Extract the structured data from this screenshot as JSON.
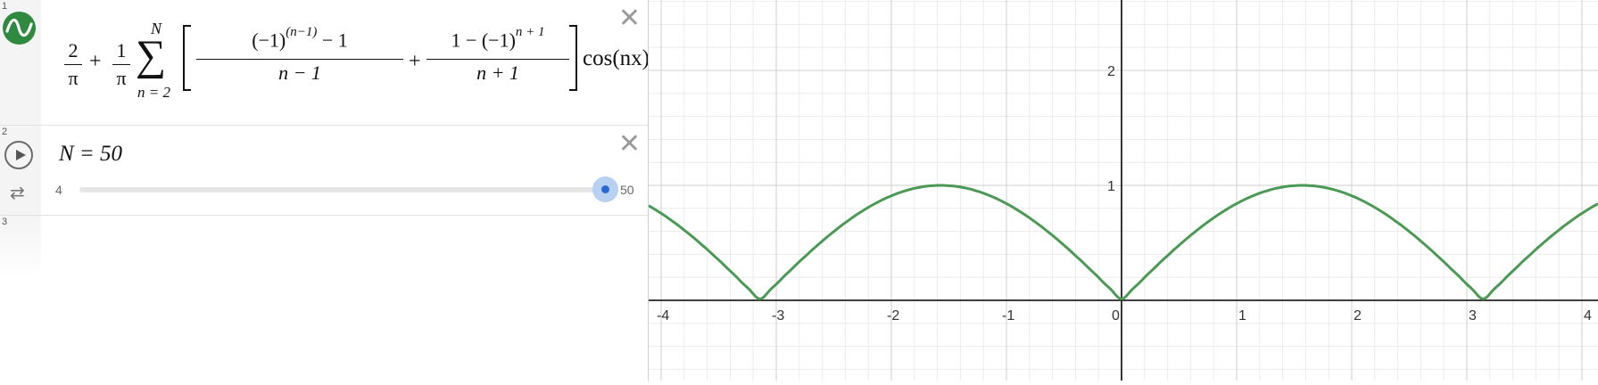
{
  "expressions": [
    {
      "index": "1",
      "type": "function",
      "icon": "desmos-logo-icon",
      "color": "#2f8a3f",
      "formula": {
        "term1_num": "2",
        "term1_den": "π",
        "plus1": "+",
        "term2_num": "1",
        "term2_den": "π",
        "sigma": "∑",
        "upper": "N",
        "lower": "n = 2",
        "frac1_num": "(−1)",
        "frac1_exp": "(n−1)",
        "frac1_tail": "− 1",
        "frac1_den": "n − 1",
        "plus2": "+",
        "frac2_num": "1 − (−1)",
        "frac2_exp": "n + 1",
        "frac2_den": "n + 1",
        "tail": "cos(nx)"
      }
    },
    {
      "index": "2",
      "type": "slider",
      "label": "N = 50",
      "min": "4",
      "max": "50",
      "value": 50,
      "play_icon": "play-icon",
      "loop_icon": "loop-icon",
      "accent": "#2b66d6"
    },
    {
      "index": "3",
      "type": "empty"
    }
  ],
  "close_glyph": "✕",
  "graph": {
    "x_ticks": [
      "-4",
      "-3",
      "-2",
      "-1",
      "0",
      "1",
      "2",
      "3",
      "4"
    ],
    "y_ticks": [
      "1",
      "2"
    ],
    "curve_color": "#4a9a55",
    "axis_color": "#222222"
  }
}
